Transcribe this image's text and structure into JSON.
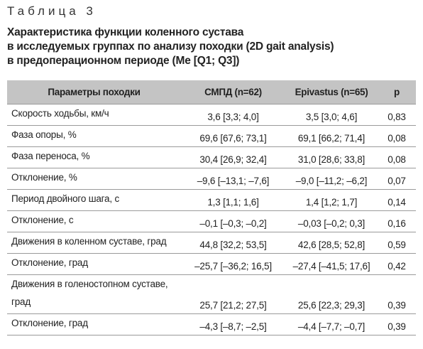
{
  "header": {
    "label": "Таблица 3",
    "caption": [
      "Характеристика функции коленного сустава",
      "в исследуемых группах по анализу походки (2D gait analysis)",
      "в предоперационном периоде (Me [Q1; Q3])"
    ]
  },
  "table": {
    "columns": [
      "Параметры походки",
      "СМПД (n=62)",
      "Epivastus (n=65)",
      "p"
    ],
    "rows": [
      [
        "Скорость ходьбы, км/ч",
        "3,6 [3,3; 4,0]",
        "3,5 [3,0; 4,6]",
        "0,83"
      ],
      [
        "Фаза опоры, %",
        "69,6 [67,6; 73,1]",
        "69,1 [66,2; 71,4]",
        "0,08"
      ],
      [
        "Фаза переноса, %",
        "30,4 [26,9; 32,4]",
        "31,0 [28,6; 33,8]",
        "0,08"
      ],
      [
        "Отклонение, %",
        "–9,6 [–13,1; –7,6]",
        "–9,0 [–11,2; –6,2]",
        "0,07"
      ],
      [
        "Период двойного шага, с",
        "1,3 [1,1; 1,6]",
        "1,4 [1,2; 1,7]",
        "0,14"
      ],
      [
        "Отклонение, с",
        "–0,1 [–0,3; –0,2]",
        "–0,03 [–0,2; 0,3]",
        "0,16"
      ],
      [
        "Движения в коленном суставе, град",
        "44,8 [32,2; 53,5]",
        "42,6 [28,5; 52,8]",
        "0,59"
      ],
      [
        "Отклонение, град",
        "–25,7 [–36,2; 16,5]",
        "–27,4 [–41,5; 17,6]",
        "0,42"
      ],
      [
        "Движения в голеностопном суставе, град",
        "25,7 [21,2; 27,5]",
        "25,6 [22,3; 29,3]",
        "0,39"
      ],
      [
        "Отклонение, град",
        "–4,3 [–8,7; –2,5]",
        "–4,4 [–7,7; –0,7]",
        "0,39"
      ]
    ]
  }
}
